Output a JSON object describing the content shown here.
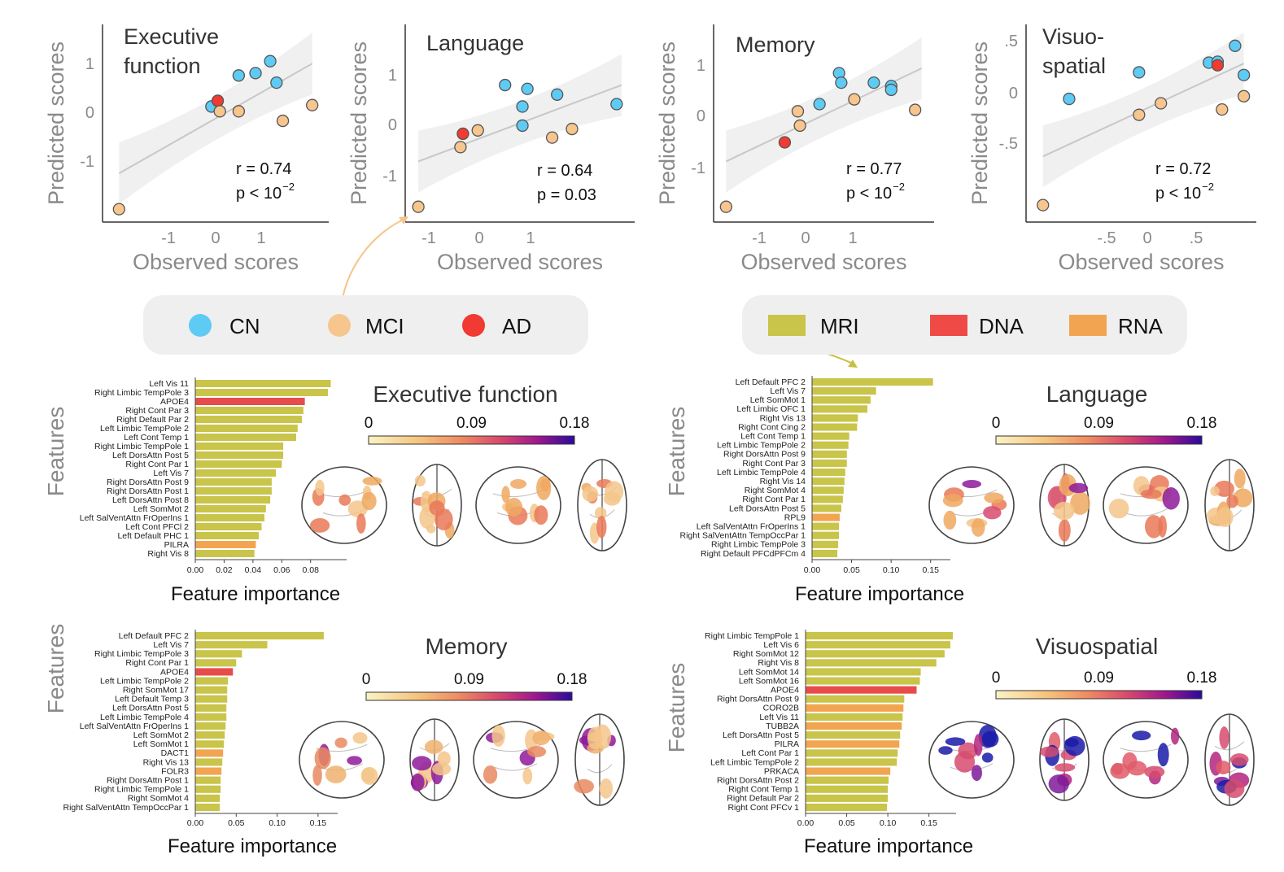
{
  "colors": {
    "CN": "#5ecbf4",
    "MCI": "#f7c58e",
    "AD": "#f03a32",
    "MRI": "#c9c44a",
    "DNA": "#e74c4c",
    "RNA": "#f2a550",
    "axis": "#333333",
    "muted": "#8a8a8a",
    "fit": "#c8c8c8",
    "band": "#f0f0f0",
    "legend_bg": "#efefef",
    "arrow_orange": "#f5c58a",
    "arrow_olive": "#c6c046"
  },
  "legends": {
    "groups": [
      {
        "key": "CN",
        "label": "CN"
      },
      {
        "key": "MCI",
        "label": "MCI"
      },
      {
        "key": "AD",
        "label": "AD"
      }
    ],
    "modalities": [
      {
        "key": "MRI",
        "label": "MRI"
      },
      {
        "key": "DNA",
        "label": "DNA"
      },
      {
        "key": "RNA",
        "label": "RNA"
      }
    ]
  },
  "colorbar": {
    "ticks": [
      "0",
      "0.09",
      "0.18"
    ]
  },
  "chart_data": [
    {
      "type": "scatter",
      "panel": "Executive function",
      "title_lines": [
        "Executive",
        "function"
      ],
      "xlabel": "Observed scores",
      "ylabel": "Predicted scores",
      "xticks": [
        "-1",
        "0",
        "1"
      ],
      "yticks": [
        "1",
        "0",
        "-1"
      ],
      "xlim": [
        -2.5,
        2.5
      ],
      "ylim": [
        -2.2,
        1.6
      ],
      "stat_r": "r = 0.74",
      "stat_p": "p < 10",
      "stat_p_exp": "−2",
      "fit": {
        "x": [
          -2.3,
          2.3
        ],
        "y": [
          -1.35,
          0.95
        ]
      },
      "points": [
        {
          "x": -2.3,
          "y": -2.1,
          "g": "MCI"
        },
        {
          "x": -0.1,
          "y": 0.05,
          "g": "CN"
        },
        {
          "x": 0.05,
          "y": 0.17,
          "g": "AD"
        },
        {
          "x": 0.1,
          "y": -0.05,
          "g": "MCI"
        },
        {
          "x": 0.55,
          "y": 0.7,
          "g": "CN"
        },
        {
          "x": 0.95,
          "y": 0.75,
          "g": "CN"
        },
        {
          "x": 1.3,
          "y": 1.0,
          "g": "CN"
        },
        {
          "x": 1.45,
          "y": 0.55,
          "g": "CN"
        },
        {
          "x": 0.55,
          "y": -0.05,
          "g": "MCI"
        },
        {
          "x": 1.6,
          "y": -0.25,
          "g": "MCI"
        },
        {
          "x": 2.3,
          "y": 0.08,
          "g": "MCI"
        }
      ]
    },
    {
      "type": "scatter",
      "panel": "Language",
      "title_lines": [
        "Language"
      ],
      "xlabel": "Observed scores",
      "ylabel": "Predicted scores",
      "xticks": [
        "-1",
        "0",
        "1"
      ],
      "yticks": [
        "1",
        "0",
        "-1"
      ],
      "xlim": [
        -1.3,
        3.0
      ],
      "ylim": [
        -1.9,
        1.9
      ],
      "stat_r": "r = 0.64",
      "stat_p": "p = 0.03",
      "stat_p_exp": "",
      "fit": {
        "x": [
          -1.2,
          2.9
        ],
        "y": [
          -0.8,
          0.8
        ]
      },
      "points": [
        {
          "x": -1.2,
          "y": -1.75,
          "g": "MCI"
        },
        {
          "x": -0.35,
          "y": -0.5,
          "g": "MCI"
        },
        {
          "x": -0.3,
          "y": -0.22,
          "g": "AD"
        },
        {
          "x": 0.0,
          "y": -0.15,
          "g": "MCI"
        },
        {
          "x": 0.55,
          "y": 0.8,
          "g": "CN"
        },
        {
          "x": 0.9,
          "y": -0.05,
          "g": "CN"
        },
        {
          "x": 0.9,
          "y": 0.35,
          "g": "CN"
        },
        {
          "x": 1.0,
          "y": 0.72,
          "g": "CN"
        },
        {
          "x": 1.6,
          "y": 0.6,
          "g": "CN"
        },
        {
          "x": 1.5,
          "y": -0.3,
          "g": "MCI"
        },
        {
          "x": 1.9,
          "y": -0.12,
          "g": "MCI"
        },
        {
          "x": 2.8,
          "y": 0.4,
          "g": "CN"
        }
      ]
    },
    {
      "type": "scatter",
      "panel": "Memory",
      "title_lines": [
        "Memory"
      ],
      "xlabel": "Observed scores",
      "ylabel": "Predicted scores",
      "xticks": [
        "-1",
        "0",
        "1"
      ],
      "yticks": [
        "1",
        "0",
        "-1"
      ],
      "xlim": [
        -1.9,
        2.8
      ],
      "ylim": [
        -2.1,
        1.7
      ],
      "stat_r": "r = 0.77",
      "stat_p": "p < 10",
      "stat_p_exp": "−2",
      "fit": {
        "x": [
          -1.8,
          2.7
        ],
        "y": [
          -1.0,
          0.95
        ]
      },
      "points": [
        {
          "x": -1.8,
          "y": -1.95,
          "g": "MCI"
        },
        {
          "x": -0.45,
          "y": -0.6,
          "g": "AD"
        },
        {
          "x": -0.15,
          "y": 0.05,
          "g": "MCI"
        },
        {
          "x": -0.1,
          "y": -0.25,
          "g": "MCI"
        },
        {
          "x": 0.35,
          "y": 0.2,
          "g": "CN"
        },
        {
          "x": 0.8,
          "y": 0.85,
          "g": "CN"
        },
        {
          "x": 0.85,
          "y": 0.65,
          "g": "CN"
        },
        {
          "x": 1.15,
          "y": 0.3,
          "g": "MCI"
        },
        {
          "x": 1.6,
          "y": 0.65,
          "g": "CN"
        },
        {
          "x": 2.0,
          "y": 0.58,
          "g": "CN"
        },
        {
          "x": 2.0,
          "y": 0.5,
          "g": "CN"
        },
        {
          "x": 2.55,
          "y": 0.08,
          "g": "MCI"
        }
      ]
    },
    {
      "type": "scatter",
      "panel": "Visuospatial",
      "title_lines": [
        "Visuo-",
        "spatial"
      ],
      "xlabel": "Observed scores",
      "ylabel": "Predicted scores",
      "xticks": [
        "-.5",
        "0",
        ".5"
      ],
      "yticks": [
        ".5",
        "0",
        "-.5"
      ],
      "xlim": [
        -1.3,
        1.15
      ],
      "ylim": [
        -1.3,
        0.75
      ],
      "stat_r": "r = 0.72",
      "stat_p": "p < 10",
      "stat_p_exp": "−2",
      "fit": {
        "x": [
          -1.2,
          1.1
        ],
        "y": [
          -0.65,
          0.4
        ]
      },
      "points": [
        {
          "x": -1.2,
          "y": -1.2,
          "g": "MCI"
        },
        {
          "x": -0.9,
          "y": 0.0,
          "g": "CN"
        },
        {
          "x": -0.1,
          "y": 0.3,
          "g": "CN"
        },
        {
          "x": -0.1,
          "y": -0.18,
          "g": "MCI"
        },
        {
          "x": 0.15,
          "y": -0.05,
          "g": "MCI"
        },
        {
          "x": 0.7,
          "y": 0.41,
          "g": "CN"
        },
        {
          "x": 0.8,
          "y": 0.42,
          "g": "CN"
        },
        {
          "x": 0.8,
          "y": 0.38,
          "g": "AD"
        },
        {
          "x": 0.85,
          "y": -0.12,
          "g": "MCI"
        },
        {
          "x": 1.0,
          "y": 0.6,
          "g": "CN"
        },
        {
          "x": 1.1,
          "y": 0.27,
          "g": "CN"
        },
        {
          "x": 1.1,
          "y": 0.03,
          "g": "MCI"
        }
      ]
    },
    {
      "type": "bar",
      "orientation": "horizontal",
      "panel": "Executive function",
      "title": "Executive function",
      "xlabel": "Feature importance",
      "ylabel": "Features",
      "xticks": [
        "0.00",
        "0.02",
        "0.04",
        "0.06",
        "0.08"
      ],
      "xmax": 0.08,
      "xmax_scale": 0.105,
      "categories": [
        "Left Vis 11",
        "Right Limbic TempPole 3",
        "APOE4",
        "Right Cont Par 3",
        "Right Default Par 2",
        "Left Limbic TempPole 2",
        "Left Cont Temp 1",
        "Right Limbic TempPole 1",
        "Left DorsAttn Post 5",
        "Right Cont Par 1",
        "Left Vis 7",
        "Right DorsAttn Post 9",
        "Right DorsAttn Post 1",
        "Left DorsAttn Post 8",
        "Left SomMot 2",
        "Left SalVentAttn FrOperIns 1",
        "Left Cont PFCl 2",
        "Left Default PHC 1",
        "PILRA",
        "Right Vis 8"
      ],
      "values": [
        0.094,
        0.092,
        0.076,
        0.075,
        0.074,
        0.071,
        0.07,
        0.061,
        0.061,
        0.06,
        0.056,
        0.053,
        0.053,
        0.052,
        0.049,
        0.048,
        0.046,
        0.044,
        0.042,
        0.041
      ],
      "modality": [
        "MRI",
        "MRI",
        "DNA",
        "MRI",
        "MRI",
        "MRI",
        "MRI",
        "MRI",
        "MRI",
        "MRI",
        "MRI",
        "MRI",
        "MRI",
        "MRI",
        "MRI",
        "MRI",
        "MRI",
        "MRI",
        "RNA",
        "MRI"
      ]
    },
    {
      "type": "bar",
      "orientation": "horizontal",
      "panel": "Language",
      "title": "Language",
      "xlabel": "Feature importance",
      "ylabel": "Features",
      "xticks": [
        "0.00",
        "0.05",
        "0.10",
        "0.15"
      ],
      "xmax": 0.15,
      "xmax_scale": 0.175,
      "categories": [
        "Left Default PFC 2",
        "Left Vis 7",
        "Left SomMot 1",
        "Left Limbic OFC 1",
        "Right Vis 13",
        "Right Cont Cing 2",
        "Left Cont Temp 1",
        "Left Limbic TempPole 2",
        "Right DorsAttn Post 9",
        "Right Cont Par 3",
        "Left Limbic TempPole 4",
        "Right Vis 14",
        "Right SomMot 4",
        "Right Cont Par 1",
        "Left DorsAttn Post 5",
        "RPL9",
        "Left SalVentAttn FrOperIns 1",
        "Right SalVentAttn TempOccPar 1",
        "Right Limbic TempPole 3",
        "Right Default PFCdPFCm 4"
      ],
      "values": [
        0.153,
        0.081,
        0.074,
        0.07,
        0.058,
        0.057,
        0.047,
        0.046,
        0.044,
        0.044,
        0.042,
        0.041,
        0.04,
        0.039,
        0.037,
        0.035,
        0.034,
        0.034,
        0.033,
        0.032
      ],
      "modality": [
        "MRI",
        "MRI",
        "MRI",
        "MRI",
        "MRI",
        "MRI",
        "MRI",
        "MRI",
        "MRI",
        "MRI",
        "MRI",
        "MRI",
        "MRI",
        "MRI",
        "MRI",
        "RNA",
        "MRI",
        "MRI",
        "MRI",
        "MRI"
      ]
    },
    {
      "type": "bar",
      "orientation": "horizontal",
      "panel": "Memory",
      "title": "Memory",
      "xlabel": "Feature importance",
      "ylabel": "Features",
      "xticks": [
        "0.00",
        "0.05",
        "0.10",
        "0.15"
      ],
      "xmax": 0.15,
      "xmax_scale": 0.174,
      "categories": [
        "Left Default PFC 2",
        "Left Vis 7",
        "Right Limbic TempPole 3",
        "Right Cont Par 1",
        "APOE4",
        "Left Limbic TempPole 2",
        "Right SomMot 17",
        "Left Default Temp 3",
        "Left DorsAttn Post 5",
        "Left Limbic TempPole 4",
        "Left SalVentAttn FrOperIns 1",
        "Left SomMot 2",
        "Left SomMot 1",
        "DACT1",
        "Right Vis 13",
        "FOLR3",
        "Right DorsAttn Post 1",
        "Right Limbic TempPole 1",
        "Right SomMot 4",
        "Right SalVentAttn TempOccPar 1"
      ],
      "values": [
        0.157,
        0.088,
        0.057,
        0.05,
        0.046,
        0.04,
        0.039,
        0.039,
        0.038,
        0.038,
        0.037,
        0.036,
        0.035,
        0.034,
        0.033,
        0.032,
        0.031,
        0.031,
        0.03,
        0.03
      ],
      "modality": [
        "MRI",
        "MRI",
        "MRI",
        "MRI",
        "DNA",
        "MRI",
        "MRI",
        "MRI",
        "MRI",
        "MRI",
        "MRI",
        "MRI",
        "MRI",
        "RNA",
        "MRI",
        "RNA",
        "MRI",
        "MRI",
        "MRI",
        "MRI"
      ]
    },
    {
      "type": "bar",
      "orientation": "horizontal",
      "panel": "Visuospatial",
      "title": "Visuospatial",
      "xlabel": "Feature importance",
      "ylabel": "Features",
      "xticks": [
        "0.00",
        "0.05",
        "0.10",
        "0.15"
      ],
      "xmax": 0.15,
      "xmax_scale": 0.183,
      "categories": [
        "Right Limbic TempPole 1",
        "Left Vis 6",
        "Right SomMot 12",
        "Right Vis 8",
        "Left SomMot 14",
        "Left SomMot 16",
        "APOE4",
        "Right DorsAttn Post 9",
        "CORO2B",
        "Left Vis 11",
        "TUBB2A",
        "Left DorsAttn Post 5",
        "PILRA",
        "Left Cont Par 1",
        "Left Limbic TempPole 2",
        "PRKACA",
        "Right DorsAttn Post 2",
        "Right Cont Temp 1",
        "Right Default Par 2",
        "Right Cont PFCv 1"
      ],
      "values": [
        0.179,
        0.176,
        0.169,
        0.159,
        0.14,
        0.139,
        0.135,
        0.12,
        0.119,
        0.118,
        0.117,
        0.115,
        0.114,
        0.112,
        0.111,
        0.103,
        0.101,
        0.1,
        0.1,
        0.099
      ],
      "modality": [
        "MRI",
        "MRI",
        "MRI",
        "MRI",
        "MRI",
        "MRI",
        "DNA",
        "MRI",
        "RNA",
        "MRI",
        "RNA",
        "MRI",
        "RNA",
        "MRI",
        "MRI",
        "RNA",
        "MRI",
        "MRI",
        "MRI",
        "MRI"
      ]
    }
  ]
}
